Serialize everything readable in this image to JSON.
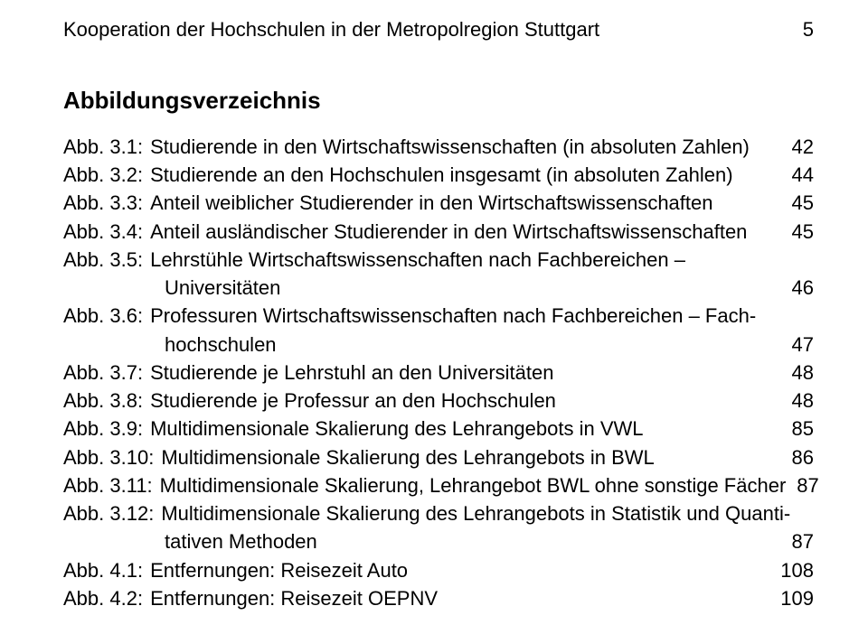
{
  "header": {
    "running_title": "Kooperation der Hochschulen in der Metropolregion Stuttgart",
    "page_number": "5"
  },
  "title": "Abbildungsverzeichnis",
  "entries": [
    {
      "label": "Abb. 3.1:",
      "text": "Studierende in den Wirtschaftswissenschaften (in absoluten Zahlen)",
      "page": "42",
      "cont": null
    },
    {
      "label": "Abb. 3.2:",
      "text": "Studierende an den Hochschulen insgesamt (in absoluten Zahlen)",
      "page": "44",
      "cont": null
    },
    {
      "label": "Abb. 3.3:",
      "text": "Anteil weiblicher Studierender in den Wirtschaftswissenschaften",
      "page": "45",
      "cont": null
    },
    {
      "label": "Abb. 3.4:",
      "text": "Anteil ausländischer Studierender in den Wirtschaftswissenschaften",
      "page": "45",
      "cont": null
    },
    {
      "label": "Abb. 3.5:",
      "text": "Lehrstühle Wirtschaftswissenschaften nach Fachbereichen –",
      "page": "46",
      "cont": "Universitäten"
    },
    {
      "label": "Abb. 3.6:",
      "text": "Professuren Wirtschaftswissenschaften nach Fachbereichen – Fach-",
      "page": "47",
      "cont": "hochschulen"
    },
    {
      "label": "Abb. 3.7:",
      "text": "Studierende je Lehrstuhl an den Universitäten",
      "page": "48",
      "cont": null
    },
    {
      "label": "Abb. 3.8:",
      "text": "Studierende je Professur an den Hochschulen",
      "page": "48",
      "cont": null
    },
    {
      "label": "Abb. 3.9:",
      "text": "Multidimensionale Skalierung des Lehrangebots in VWL",
      "page": "85",
      "cont": null
    },
    {
      "label": "Abb. 3.10:",
      "text": "Multidimensionale Skalierung des Lehrangebots in BWL",
      "page": "86",
      "cont": null
    },
    {
      "label": "Abb. 3.11:",
      "text": "Multidimensionale Skalierung, Lehrangebot BWL ohne sonstige Fächer",
      "page": "87",
      "cont": null
    },
    {
      "label": "Abb. 3.12:",
      "text": "Multidimensionale Skalierung des Lehrangebots in Statistik und  Quanti-",
      "page": "87",
      "cont": "tativen Methoden"
    },
    {
      "label": "Abb. 4.1:",
      "text": "Entfernungen: Reisezeit Auto",
      "page": "108",
      "cont": null
    },
    {
      "label": "Abb. 4.2:",
      "text": "Entfernungen: Reisezeit OEPNV",
      "page": "109",
      "cont": null
    }
  ],
  "style": {
    "bg": "#ffffff",
    "text_color": "#000000",
    "header_fontsize": 22,
    "title_fontsize": 26,
    "entry_fontsize": 22
  }
}
